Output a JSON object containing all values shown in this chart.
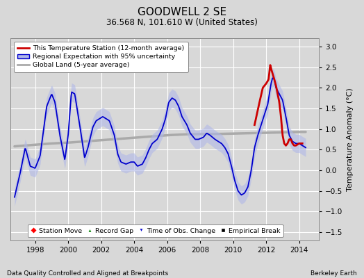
{
  "title": "GOODWELL 2 SE",
  "subtitle": "36.568 N, 101.610 W (United States)",
  "ylabel": "Temperature Anomaly (°C)",
  "footer_left": "Data Quality Controlled and Aligned at Breakpoints",
  "footer_right": "Berkeley Earth",
  "xlim": [
    1996.5,
    2015.2
  ],
  "ylim": [
    -1.7,
    3.2
  ],
  "yticks": [
    -1.5,
    -1.0,
    -0.5,
    0.0,
    0.5,
    1.0,
    1.5,
    2.0,
    2.5,
    3.0
  ],
  "xticks": [
    1998,
    2000,
    2002,
    2004,
    2006,
    2008,
    2010,
    2012,
    2014
  ],
  "bg_color": "#d8d8d8",
  "plot_bg_color": "#d8d8d8",
  "grid_color": "#ffffff",
  "legend1_labels": [
    "This Temperature Station (12-month average)",
    "Regional Expectation with 95% uncertainty",
    "Global Land (5-year average)"
  ],
  "legend2_labels": [
    "Station Move",
    "Record Gap",
    "Time of Obs. Change",
    "Empirical Break"
  ],
  "station_line_color": "#cc0000",
  "regional_line_color": "#0000cc",
  "regional_fill_color": "#b0b8e8",
  "global_line_color": "#aaaaaa",
  "time_obs_marker_color": "#0000cc"
}
